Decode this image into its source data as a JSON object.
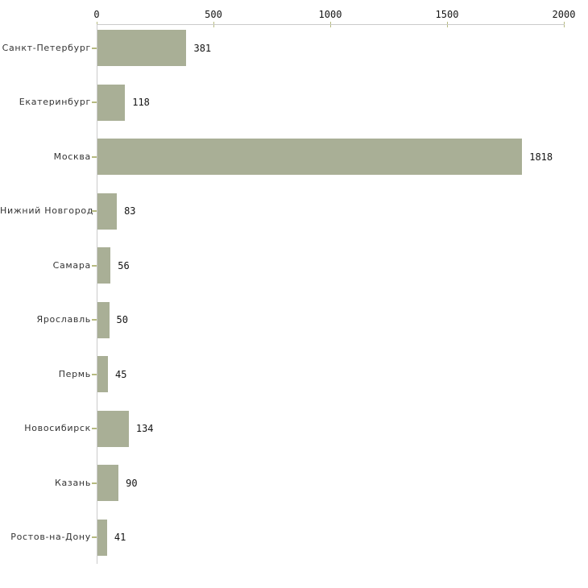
{
  "chart_data": {
    "type": "bar",
    "orientation": "horizontal",
    "title": "",
    "xlabel": "",
    "ylabel": "",
    "categories": [
      "Санкт-Петербург",
      "Екатеринбург",
      "Москва",
      "Нижний Новгород",
      "Самара",
      "Ярославль",
      "Пермь",
      "Новосибирск",
      "Казань",
      "Ростов-на-Дону"
    ],
    "values": [
      381,
      118,
      1818,
      83,
      56,
      50,
      45,
      134,
      90,
      41
    ],
    "x_ticks": [
      0,
      500,
      1000,
      1500,
      2000
    ],
    "xlim": [
      0,
      2000
    ],
    "grid": false,
    "legend": null,
    "axis_position": "top",
    "colors": {
      "bar": "#a9af96",
      "axis_line": "#cbcbcb",
      "tick_mark": "#b6ba80",
      "category_label": "#333333",
      "value_label": "#141414",
      "background": "#ffffff"
    }
  }
}
